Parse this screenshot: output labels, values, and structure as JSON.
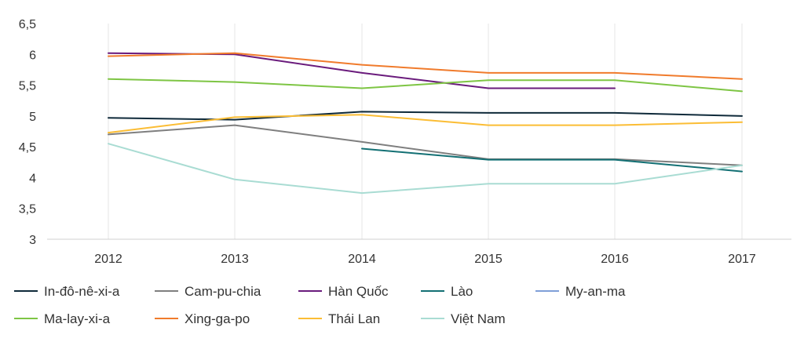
{
  "chart_data": {
    "type": "line",
    "title": "",
    "xlabel": "",
    "ylabel": "",
    "categories": [
      "2012",
      "2013",
      "2014",
      "2015",
      "2016",
      "2017"
    ],
    "y_ticks": [
      "6,5",
      "6",
      "5,5",
      "5",
      "4,5",
      "4",
      "3,5",
      "3"
    ],
    "y_tick_values": [
      6.5,
      6,
      5.5,
      5,
      4.5,
      4,
      3.5,
      3
    ],
    "ylim": [
      3,
      6.5
    ],
    "grid": "vertical",
    "legend_position": "bottom",
    "series": [
      {
        "name": "In-đô-nê-xi-a",
        "color": "#0f2a3a",
        "values": [
          4.97,
          4.94,
          5.07,
          5.05,
          5.05,
          5.0
        ]
      },
      {
        "name": "Cam-pu-chia",
        "color": "#7f7f7f",
        "values": [
          4.7,
          4.85,
          4.58,
          4.3,
          4.3,
          4.2
        ]
      },
      {
        "name": "Hàn Quốc",
        "color": "#6a1b7c",
        "values": [
          6.02,
          6.0,
          5.7,
          5.45,
          5.45,
          null
        ]
      },
      {
        "name": "Lào",
        "color": "#137074",
        "values": [
          null,
          null,
          4.47,
          4.29,
          4.29,
          4.1
        ]
      },
      {
        "name": "My-an-ma",
        "color": "#7f9fd8",
        "values": [
          null,
          null,
          null,
          null,
          null,
          null
        ]
      },
      {
        "name": "Ma-lay-xi-a",
        "color": "#7ec544",
        "values": [
          5.6,
          5.55,
          5.45,
          5.58,
          5.58,
          5.4
        ]
      },
      {
        "name": "Xing-ga-po",
        "color": "#f07b2c",
        "values": [
          5.97,
          6.02,
          5.83,
          5.7,
          5.7,
          5.6
        ]
      },
      {
        "name": "Thái Lan",
        "color": "#fbbd35",
        "values": [
          4.73,
          4.98,
          5.02,
          4.85,
          4.85,
          4.9
        ]
      },
      {
        "name": "Việt Nam",
        "color": "#a9dcd3",
        "values": [
          4.55,
          3.97,
          3.75,
          3.9,
          3.9,
          4.2
        ]
      }
    ]
  }
}
